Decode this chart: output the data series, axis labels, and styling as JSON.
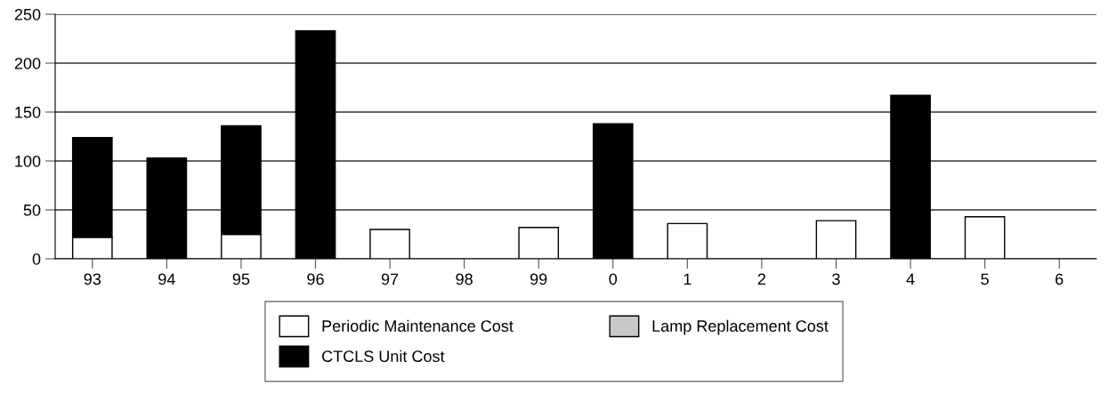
{
  "chart_data": {
    "type": "bar",
    "stacked": true,
    "categories": [
      "93",
      "94",
      "95",
      "96",
      "97",
      "98",
      "99",
      "0",
      "1",
      "2",
      "3",
      "4",
      "5",
      "6"
    ],
    "series": [
      {
        "name": "Periodic Maintenance Cost",
        "color": "#ffffff",
        "values": [
          22,
          0,
          25,
          0,
          30,
          0,
          32,
          0,
          36,
          0,
          39,
          0,
          43,
          0
        ]
      },
      {
        "name": "CTCLS Unit Cost",
        "color": "#000000",
        "values": [
          102,
          103,
          111,
          233,
          0,
          0,
          0,
          138,
          0,
          0,
          0,
          167,
          0,
          0
        ]
      },
      {
        "name": "Lamp Replacement Cost",
        "color": "#c8c8c8",
        "values": [
          0,
          0,
          0,
          0,
          0,
          0,
          0,
          0,
          0,
          0,
          0,
          0,
          0,
          0
        ]
      }
    ],
    "ylim": [
      0,
      250
    ],
    "yticks": [
      0,
      50,
      100,
      150,
      200,
      250
    ],
    "grid": "y",
    "legend": "bottom"
  }
}
